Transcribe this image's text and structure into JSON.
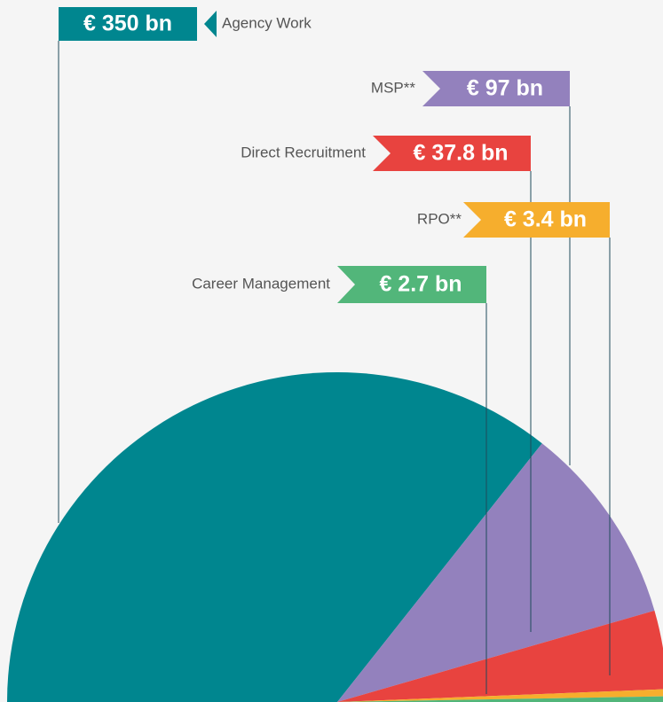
{
  "chart_data": {
    "type": "pie",
    "categories": [
      "Agency Work",
      "MSP**",
      "Direct Recruitment",
      "RPO**",
      "Career Management"
    ],
    "values": [
      350,
      97,
      37.8,
      3.4,
      2.7
    ],
    "value_labels": [
      "€ 350 bn",
      "€ 97 bn",
      "€ 37.8 bn",
      "€ 3.4 bn",
      "€ 2.7 bn"
    ],
    "colors": [
      "#00868f",
      "#9381bd",
      "#e8433f",
      "#f6ae2d",
      "#52b67a"
    ]
  }
}
